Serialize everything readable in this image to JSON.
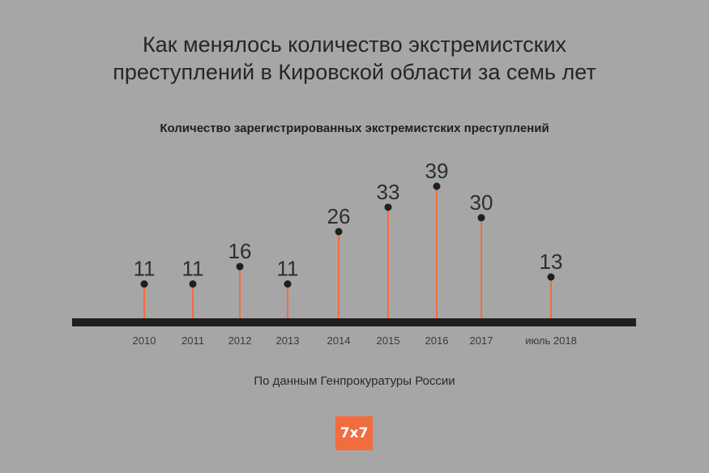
{
  "header": {
    "title_line1": "Как менялось количество экстремистских",
    "title_line2": "преступлений в Кировской области за семь лет"
  },
  "chart_data": {
    "type": "bar",
    "subtitle": "Количество зарегистрированных экстремистских преступлений",
    "categories": [
      "2010",
      "2011",
      "2012",
      "2013",
      "2014",
      "2015",
      "2016",
      "2017",
      "июль 2018"
    ],
    "values": [
      11,
      11,
      16,
      11,
      26,
      33,
      39,
      30,
      13
    ],
    "xlabel": "",
    "ylabel": "",
    "ylim": [
      0,
      39
    ],
    "grid": false,
    "legend": "none",
    "colors": {
      "stem": "#f26c3e",
      "point": "#1f1f1f",
      "baseline": "#1f1f1f"
    }
  },
  "footer": {
    "source": "По данным Генпрокуратуры России",
    "logo": "7x7"
  }
}
